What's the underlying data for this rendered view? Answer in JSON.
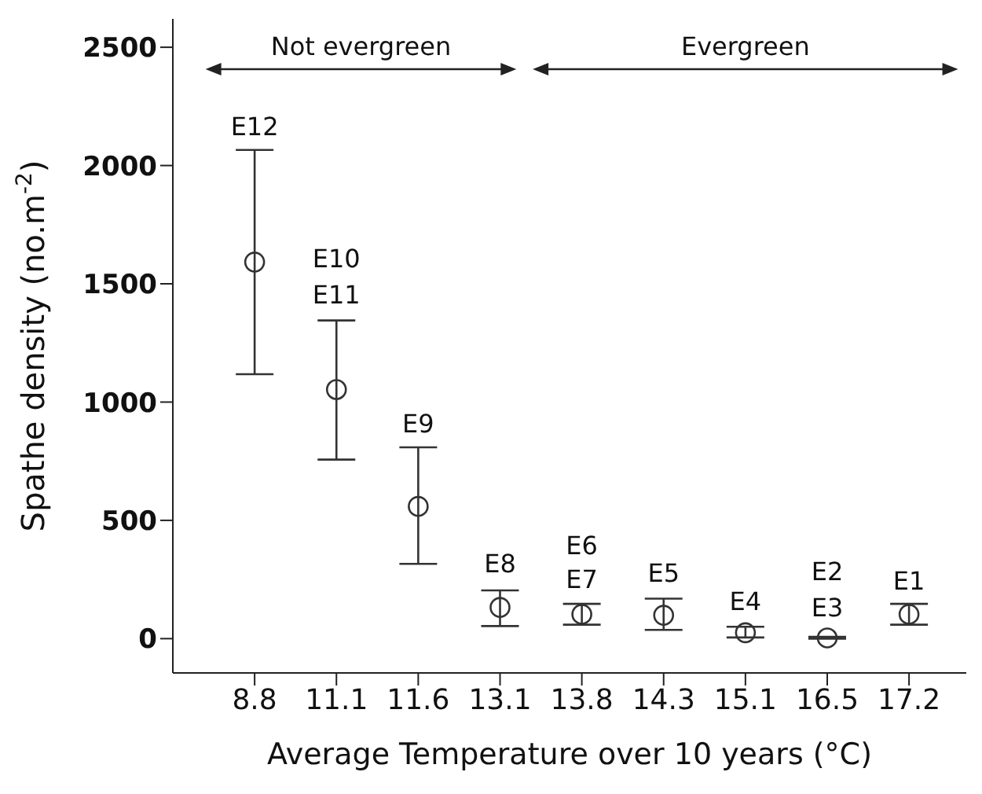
{
  "chart_data": {
    "type": "scatter",
    "xlabel": "Average Temperature over 10 years (°C)",
    "ylabel": "Spathe density (no.m$^{-2}$)",
    "categories": [
      "8.8",
      "11.1",
      "11.6",
      "13.1",
      "13.8",
      "14.3",
      "15.1",
      "16.5",
      "17.2"
    ],
    "series": [
      {
        "color": "#333333",
        "values": [
          1592,
          1053,
          559,
          132,
          103,
          99,
          25,
          3,
          103
        ],
        "errors": [
          [
            1118,
            2066
          ],
          [
            757,
            1345
          ],
          [
            316,
            809
          ],
          [
            53,
            204
          ],
          [
            59,
            147
          ],
          [
            37,
            169
          ],
          [
            5,
            50
          ],
          [
            0,
            8
          ],
          [
            59,
            147
          ]
        ]
      }
    ],
    "ylim": [
      -145,
      2620
    ],
    "yticks": [
      0,
      500,
      1000,
      1500,
      2000,
      2500
    ],
    "marker": "circle",
    "annotations": [
      "E12",
      "E10",
      "E11",
      "E9",
      "E8",
      "E6",
      "E7",
      "E5",
      "E4",
      "E2",
      "E3",
      "E1",
      "Not evergreen",
      "Evergreen"
    ]
  }
}
